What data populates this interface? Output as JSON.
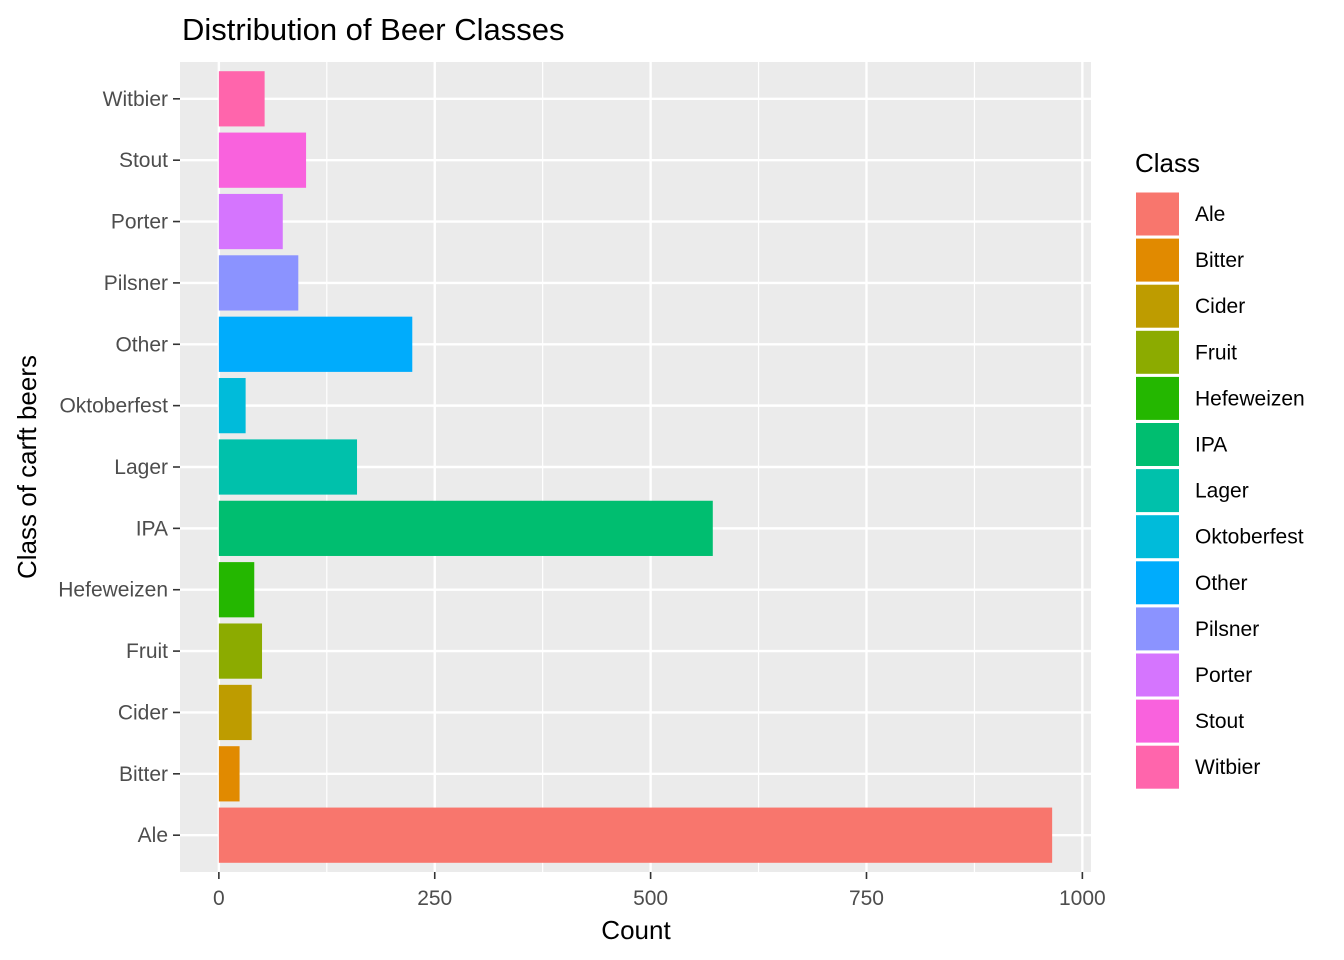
{
  "chart_data": {
    "type": "bar",
    "orientation": "horizontal",
    "title": "Distribution of Beer Classes",
    "xlabel": "Count",
    "ylabel": "Class of carft beers",
    "xlim": [
      -45,
      1010
    ],
    "x_ticks": [
      0,
      250,
      500,
      750,
      1000
    ],
    "categories": [
      "Ale",
      "Bitter",
      "Cider",
      "Fruit",
      "Hefeweizen",
      "IPA",
      "Lager",
      "Oktoberfest",
      "Other",
      "Pilsner",
      "Porter",
      "Stout",
      "Witbier"
    ],
    "values": [
      965,
      24,
      38,
      50,
      41,
      572,
      160,
      31,
      224,
      92,
      74,
      101,
      53
    ],
    "colors": [
      "#F8766D",
      "#E18A00",
      "#BE9C00",
      "#8CAB00",
      "#24B700",
      "#00BE70",
      "#00C1AB",
      "#00BBDA",
      "#00ACFC",
      "#8B93FF",
      "#D575FE",
      "#F962DD",
      "#FF65AC"
    ],
    "legend": {
      "title": "Class",
      "position": "right"
    },
    "grid": true,
    "panel_background": "#EBEBEB"
  }
}
